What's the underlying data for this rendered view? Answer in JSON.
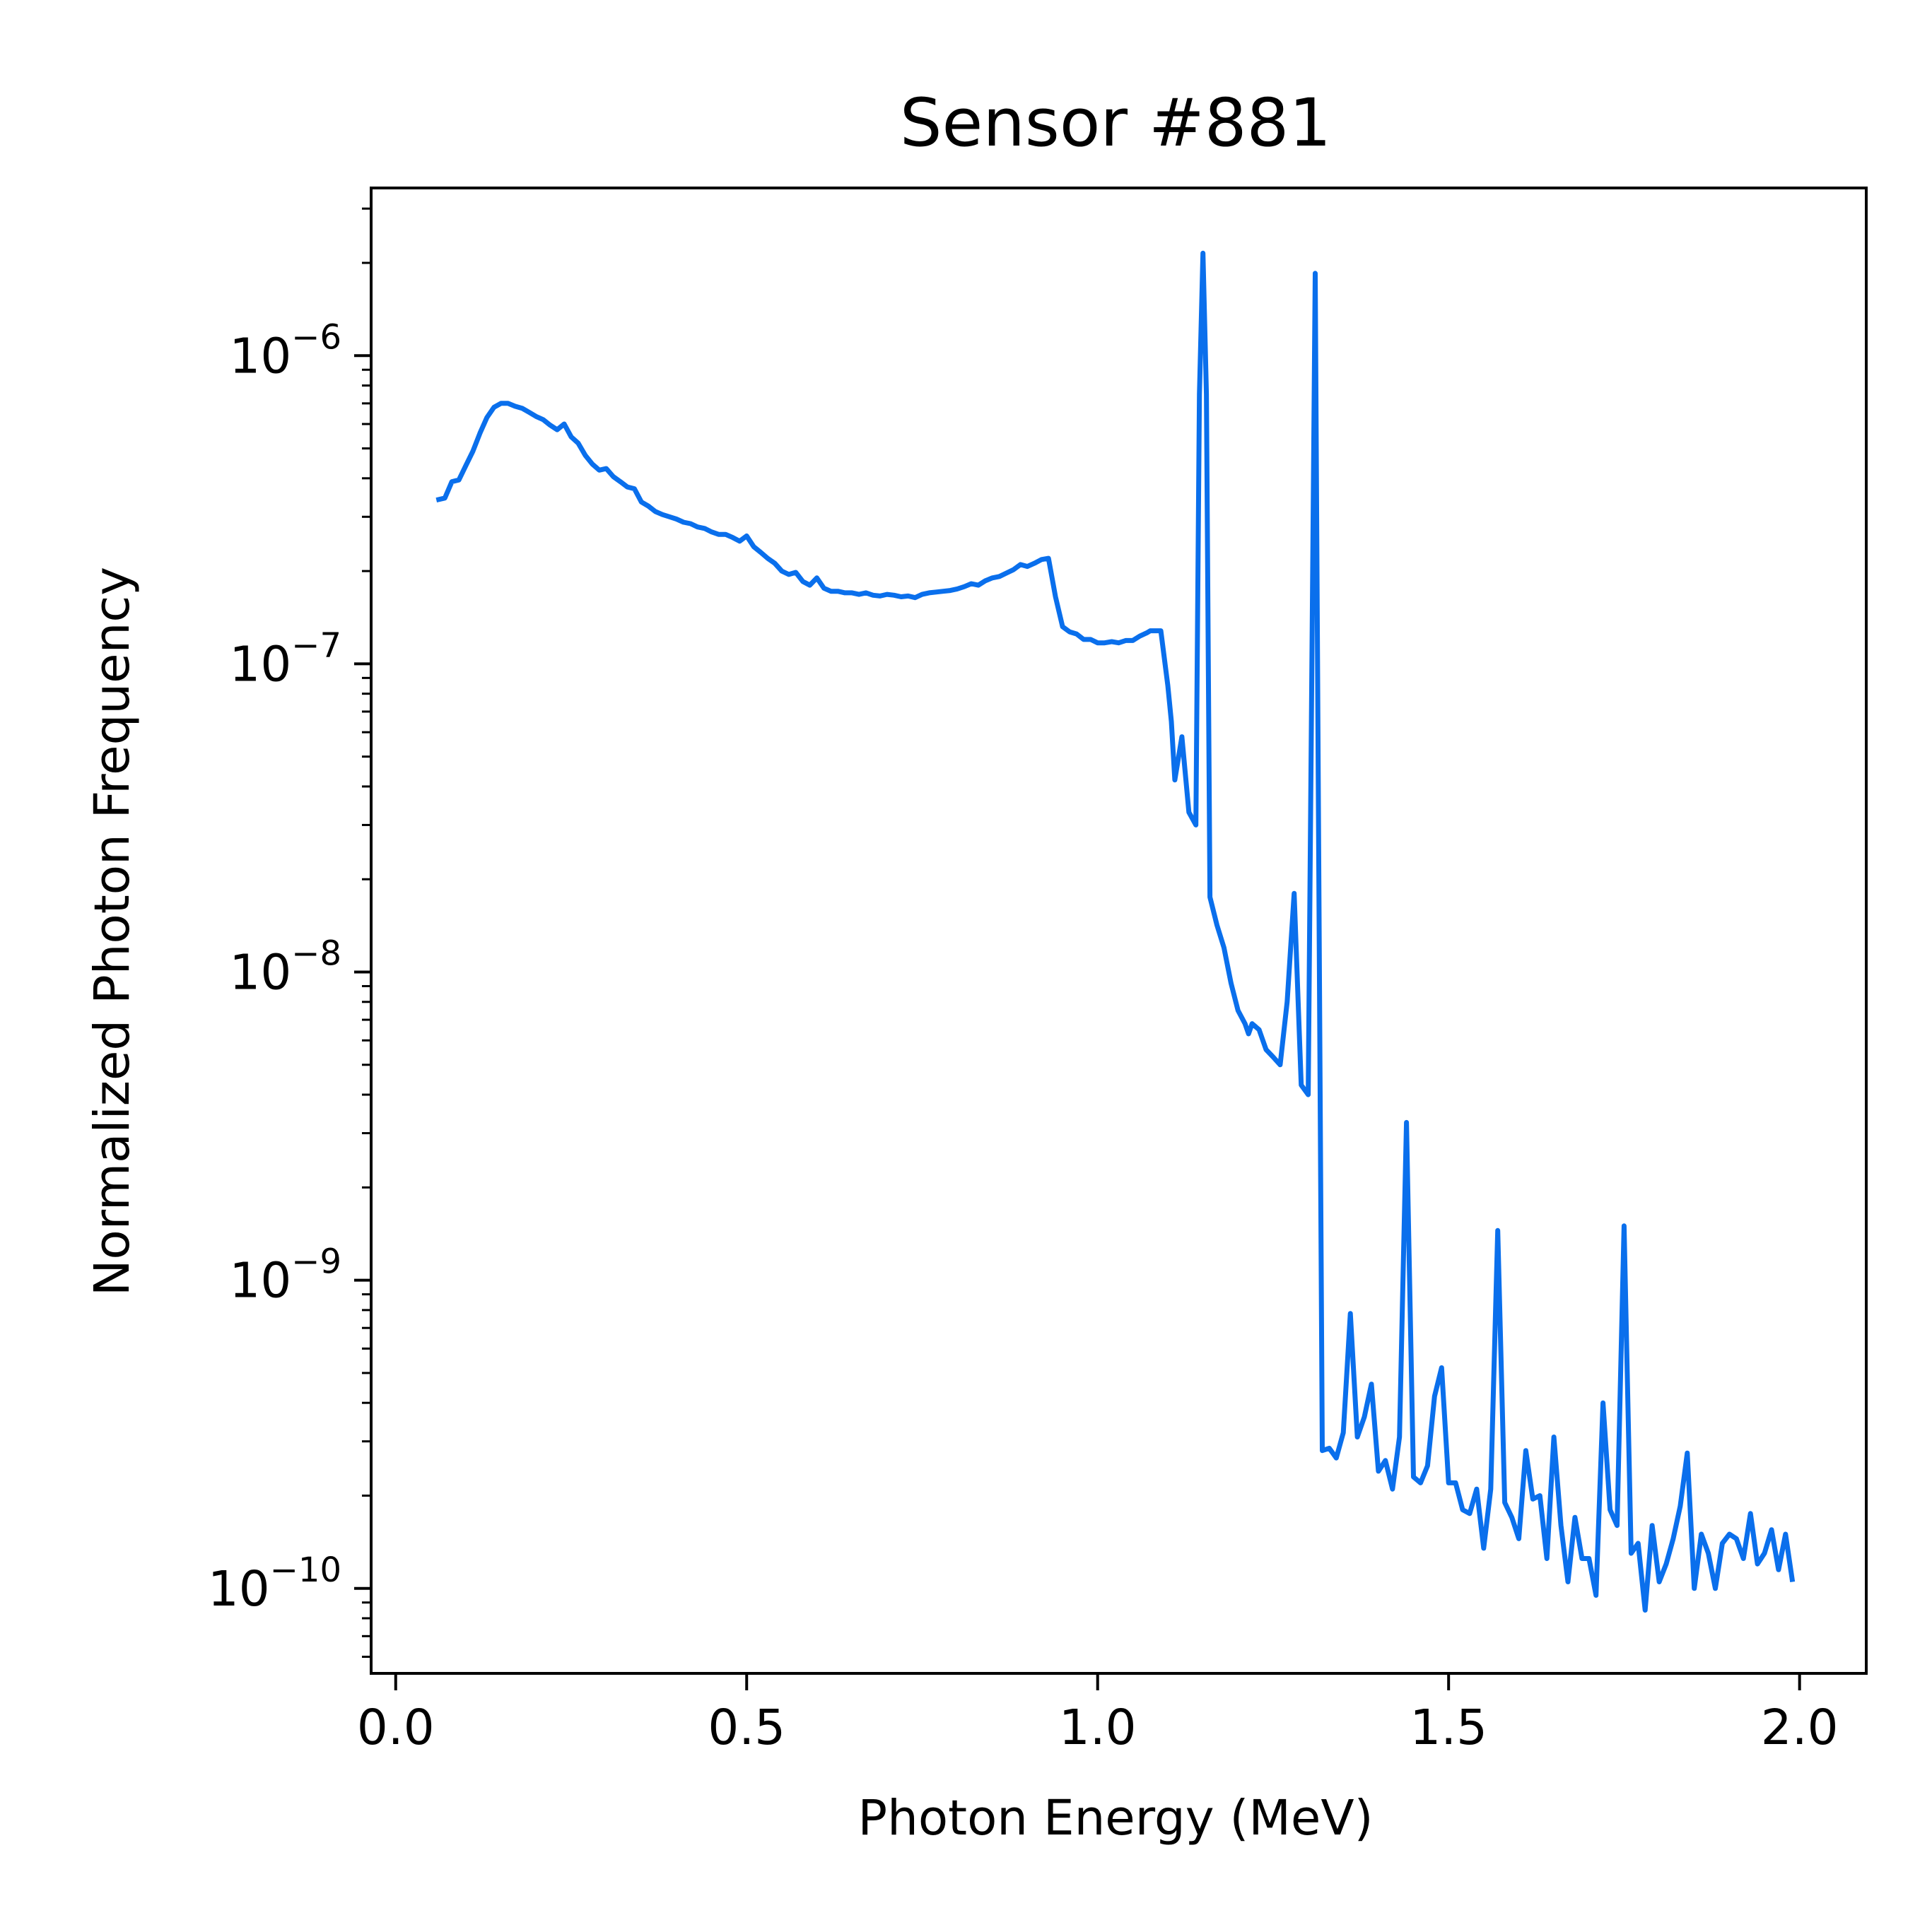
{
  "chart_data": {
    "type": "line",
    "title": "Sensor #881",
    "xlabel": "Photon Energy (MeV)",
    "ylabel": "Normalized Photon Frequency",
    "xlim": [
      -0.035,
      2.095
    ],
    "ylim": [
      5.3e-11,
      3.5e-06
    ],
    "yscale": "log",
    "grid": false,
    "xticks": [
      {
        "value": 0.0,
        "label": "0.0"
      },
      {
        "value": 0.5,
        "label": "0.5"
      },
      {
        "value": 1.0,
        "label": "1.0"
      },
      {
        "value": 1.5,
        "label": "1.5"
      },
      {
        "value": 2.0,
        "label": "2.0"
      }
    ],
    "yticks": [
      {
        "value": 1e-06,
        "base": "10",
        "exp": "−6"
      },
      {
        "value": 1e-07,
        "base": "10",
        "exp": "−7"
      },
      {
        "value": 1e-08,
        "base": "10",
        "exp": "−8"
      },
      {
        "value": 1e-09,
        "base": "10",
        "exp": "−9"
      },
      {
        "value": 1e-10,
        "base": "10",
        "exp": "−10"
      }
    ],
    "series": [
      {
        "color": "#0a6fec",
        "points": [
          [
            0.058,
            3.4e-07
          ],
          [
            0.07,
            3.45e-07
          ],
          [
            0.08,
            3.9e-07
          ],
          [
            0.09,
            3.95e-07
          ],
          [
            0.1,
            4.4e-07
          ],
          [
            0.11,
            4.9e-07
          ],
          [
            0.12,
            5.6e-07
          ],
          [
            0.13,
            6.3e-07
          ],
          [
            0.14,
            6.8e-07
          ],
          [
            0.15,
            7e-07
          ],
          [
            0.16,
            7e-07
          ],
          [
            0.17,
            6.85e-07
          ],
          [
            0.18,
            6.75e-07
          ],
          [
            0.19,
            6.55e-07
          ],
          [
            0.2,
            6.35e-07
          ],
          [
            0.21,
            6.2e-07
          ],
          [
            0.22,
            5.95e-07
          ],
          [
            0.23,
            5.75e-07
          ],
          [
            0.24,
            6e-07
          ],
          [
            0.25,
            5.45e-07
          ],
          [
            0.26,
            5.2e-07
          ],
          [
            0.27,
            4.75e-07
          ],
          [
            0.28,
            4.45e-07
          ],
          [
            0.29,
            4.25e-07
          ],
          [
            0.3,
            4.3e-07
          ],
          [
            0.31,
            4.05e-07
          ],
          [
            0.32,
            3.9e-07
          ],
          [
            0.33,
            3.75e-07
          ],
          [
            0.34,
            3.7e-07
          ],
          [
            0.35,
            3.35e-07
          ],
          [
            0.36,
            3.25e-07
          ],
          [
            0.37,
            3.12e-07
          ],
          [
            0.38,
            3.05e-07
          ],
          [
            0.39,
            3e-07
          ],
          [
            0.4,
            2.95e-07
          ],
          [
            0.41,
            2.88e-07
          ],
          [
            0.42,
            2.85e-07
          ],
          [
            0.43,
            2.78e-07
          ],
          [
            0.44,
            2.75e-07
          ],
          [
            0.45,
            2.68e-07
          ],
          [
            0.46,
            2.63e-07
          ],
          [
            0.47,
            2.63e-07
          ],
          [
            0.48,
            2.57e-07
          ],
          [
            0.49,
            2.5e-07
          ],
          [
            0.5,
            2.6e-07
          ],
          [
            0.51,
            2.4e-07
          ],
          [
            0.52,
            2.3e-07
          ],
          [
            0.53,
            2.2e-07
          ],
          [
            0.54,
            2.12e-07
          ],
          [
            0.55,
            2e-07
          ],
          [
            0.56,
            1.95e-07
          ],
          [
            0.57,
            1.98e-07
          ],
          [
            0.58,
            1.85e-07
          ],
          [
            0.59,
            1.8e-07
          ],
          [
            0.6,
            1.9e-07
          ],
          [
            0.61,
            1.76e-07
          ],
          [
            0.62,
            1.72e-07
          ],
          [
            0.63,
            1.72e-07
          ],
          [
            0.64,
            1.7e-07
          ],
          [
            0.65,
            1.7e-07
          ],
          [
            0.66,
            1.68e-07
          ],
          [
            0.67,
            1.7e-07
          ],
          [
            0.68,
            1.67e-07
          ],
          [
            0.69,
            1.66e-07
          ],
          [
            0.7,
            1.68e-07
          ],
          [
            0.71,
            1.67e-07
          ],
          [
            0.72,
            1.65e-07
          ],
          [
            0.73,
            1.66e-07
          ],
          [
            0.74,
            1.64e-07
          ],
          [
            0.75,
            1.68e-07
          ],
          [
            0.76,
            1.7e-07
          ],
          [
            0.77,
            1.71e-07
          ],
          [
            0.78,
            1.72e-07
          ],
          [
            0.79,
            1.73e-07
          ],
          [
            0.8,
            1.75e-07
          ],
          [
            0.81,
            1.78e-07
          ],
          [
            0.82,
            1.82e-07
          ],
          [
            0.83,
            1.8e-07
          ],
          [
            0.84,
            1.86e-07
          ],
          [
            0.85,
            1.9e-07
          ],
          [
            0.86,
            1.92e-07
          ],
          [
            0.87,
            1.97e-07
          ],
          [
            0.88,
            2.02e-07
          ],
          [
            0.89,
            2.1e-07
          ],
          [
            0.9,
            2.07e-07
          ],
          [
            0.91,
            2.12e-07
          ],
          [
            0.92,
            2.18e-07
          ],
          [
            0.93,
            2.2e-07
          ],
          [
            0.94,
            1.65e-07
          ],
          [
            0.95,
            1.32e-07
          ],
          [
            0.96,
            1.27e-07
          ],
          [
            0.97,
            1.25e-07
          ],
          [
            0.98,
            1.2e-07
          ],
          [
            0.99,
            1.2e-07
          ],
          [
            1.0,
            1.17e-07
          ],
          [
            1.01,
            1.17e-07
          ],
          [
            1.02,
            1.18e-07
          ],
          [
            1.03,
            1.17e-07
          ],
          [
            1.04,
            1.19e-07
          ],
          [
            1.05,
            1.19e-07
          ],
          [
            1.06,
            1.23e-07
          ],
          [
            1.07,
            1.26e-07
          ],
          [
            1.075,
            1.28e-07
          ],
          [
            1.09,
            1.28e-07
          ],
          [
            1.1,
            8.5e-08
          ],
          [
            1.105,
            6.5e-08
          ],
          [
            1.11,
            4.2e-08
          ],
          [
            1.12,
            5.8e-08
          ],
          [
            1.13,
            3.3e-08
          ],
          [
            1.14,
            3e-08
          ],
          [
            1.145,
            7.5e-07
          ],
          [
            1.15,
            2.15e-06
          ],
          [
            1.155,
            7.5e-07
          ],
          [
            1.16,
            1.75e-08
          ],
          [
            1.17,
            1.42e-08
          ],
          [
            1.18,
            1.2e-08
          ],
          [
            1.19,
            9.2e-09
          ],
          [
            1.2,
            7.5e-09
          ],
          [
            1.21,
            6.8e-09
          ],
          [
            1.215,
            6.3e-09
          ],
          [
            1.22,
            6.8e-09
          ],
          [
            1.23,
            6.5e-09
          ],
          [
            1.24,
            5.6e-09
          ],
          [
            1.25,
            5.3e-09
          ],
          [
            1.26,
            5e-09
          ],
          [
            1.27,
            8e-09
          ],
          [
            1.28,
            1.8e-08
          ],
          [
            1.29,
            4.3e-09
          ],
          [
            1.3,
            4e-09
          ],
          [
            1.31,
            1.85e-06
          ],
          [
            1.32,
            2.8e-10
          ],
          [
            1.33,
            2.85e-10
          ],
          [
            1.34,
            2.65e-10
          ],
          [
            1.35,
            3.2e-10
          ],
          [
            1.36,
            7.8e-10
          ],
          [
            1.37,
            3.1e-10
          ],
          [
            1.38,
            3.6e-10
          ],
          [
            1.39,
            4.6e-10
          ],
          [
            1.4,
            2.4e-10
          ],
          [
            1.41,
            2.6e-10
          ],
          [
            1.42,
            2.1e-10
          ],
          [
            1.43,
            3.1e-10
          ],
          [
            1.44,
            3.25e-09
          ],
          [
            1.45,
            2.3e-10
          ],
          [
            1.46,
            2.2e-10
          ],
          [
            1.47,
            2.5e-10
          ],
          [
            1.48,
            4.2e-10
          ],
          [
            1.49,
            5.2e-10
          ],
          [
            1.5,
            2.2e-10
          ],
          [
            1.51,
            2.2e-10
          ],
          [
            1.52,
            1.8e-10
          ],
          [
            1.53,
            1.75e-10
          ],
          [
            1.54,
            2.1e-10
          ],
          [
            1.55,
            1.35e-10
          ],
          [
            1.56,
            2.1e-10
          ],
          [
            1.57,
            1.45e-09
          ],
          [
            1.58,
            1.9e-10
          ],
          [
            1.59,
            1.7e-10
          ],
          [
            1.6,
            1.45e-10
          ],
          [
            1.61,
            2.8e-10
          ],
          [
            1.62,
            1.95e-10
          ],
          [
            1.63,
            2e-10
          ],
          [
            1.64,
            1.25e-10
          ],
          [
            1.65,
            3.1e-10
          ],
          [
            1.66,
            1.6e-10
          ],
          [
            1.67,
            1.05e-10
          ],
          [
            1.68,
            1.7e-10
          ],
          [
            1.69,
            1.25e-10
          ],
          [
            1.7,
            1.25e-10
          ],
          [
            1.71,
            9.5e-11
          ],
          [
            1.72,
            4e-10
          ],
          [
            1.73,
            1.8e-10
          ],
          [
            1.74,
            1.6e-10
          ],
          [
            1.75,
            1.5e-09
          ],
          [
            1.76,
            1.3e-10
          ],
          [
            1.77,
            1.4e-10
          ],
          [
            1.78,
            8.5e-11
          ],
          [
            1.79,
            1.6e-10
          ],
          [
            1.8,
            1.05e-10
          ],
          [
            1.81,
            1.2e-10
          ],
          [
            1.82,
            1.45e-10
          ],
          [
            1.83,
            1.85e-10
          ],
          [
            1.84,
            2.75e-10
          ],
          [
            1.85,
            1e-10
          ],
          [
            1.86,
            1.5e-10
          ],
          [
            1.87,
            1.3e-10
          ],
          [
            1.88,
            1e-10
          ],
          [
            1.89,
            1.4e-10
          ],
          [
            1.9,
            1.5e-10
          ],
          [
            1.91,
            1.45e-10
          ],
          [
            1.92,
            1.25e-10
          ],
          [
            1.93,
            1.75e-10
          ],
          [
            1.94,
            1.2e-10
          ],
          [
            1.95,
            1.3e-10
          ],
          [
            1.96,
            1.55e-10
          ],
          [
            1.97,
            1.15e-10
          ],
          [
            1.98,
            1.5e-10
          ],
          [
            1.99,
            1.05e-10
          ]
        ]
      }
    ]
  }
}
